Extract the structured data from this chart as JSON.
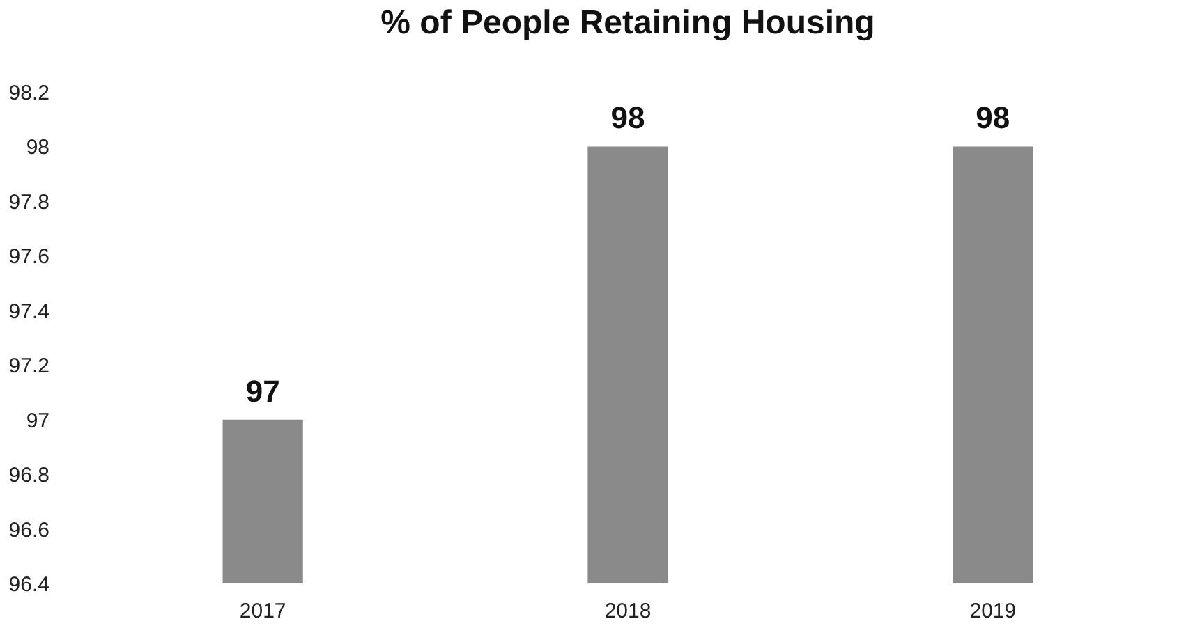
{
  "chart_data": {
    "type": "bar",
    "title": "% of People Retaining Housing",
    "categories": [
      "2017",
      "2018",
      "2019"
    ],
    "values": [
      97,
      98,
      98
    ],
    "color": "#8a8a8a",
    "ylim": [
      96.4,
      98.2
    ],
    "yticks": [
      96.4,
      96.6,
      96.8,
      97,
      97.2,
      97.4,
      97.6,
      97.8,
      98,
      98.2
    ],
    "data_labels": true,
    "grid": false
  }
}
